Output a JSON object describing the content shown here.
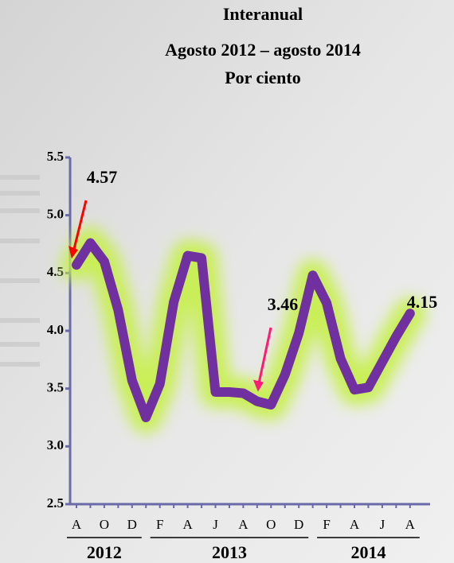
{
  "chart_data": {
    "type": "line",
    "title": [
      "Interanual",
      "Agosto 2012 – agosto 2014",
      "Por ciento"
    ],
    "categories": [
      "A",
      null,
      "O",
      null,
      "D",
      null,
      "F",
      null,
      "A",
      null,
      "J",
      null,
      "A",
      null,
      "O",
      null,
      "D",
      null,
      "F",
      null,
      "A",
      null,
      "J",
      null,
      "A"
    ],
    "years": [
      "2012",
      "2013",
      "2014"
    ],
    "series": [
      {
        "color": "#7030a0",
        "values": [
          4.57,
          4.76,
          4.6,
          4.18,
          3.57,
          3.25,
          3.54,
          4.25,
          4.65,
          4.63,
          3.47,
          3.47,
          3.46,
          3.39,
          3.36,
          3.62,
          3.98,
          4.48,
          4.24,
          3.76,
          3.49,
          3.51,
          3.73,
          3.95,
          4.15
        ]
      }
    ],
    "annotations": [
      "4.57",
      "3.46",
      "4.15"
    ],
    "ylim": [
      2.5,
      5.5
    ],
    "yticks": [
      2.5,
      {
        "value": 3,
        "label": "3.0"
      },
      3.5,
      {
        "value": 4,
        "label": "4.0"
      },
      4.5,
      {
        "value": 5,
        "label": "5.0"
      },
      5.5
    ],
    "grid": false
  }
}
